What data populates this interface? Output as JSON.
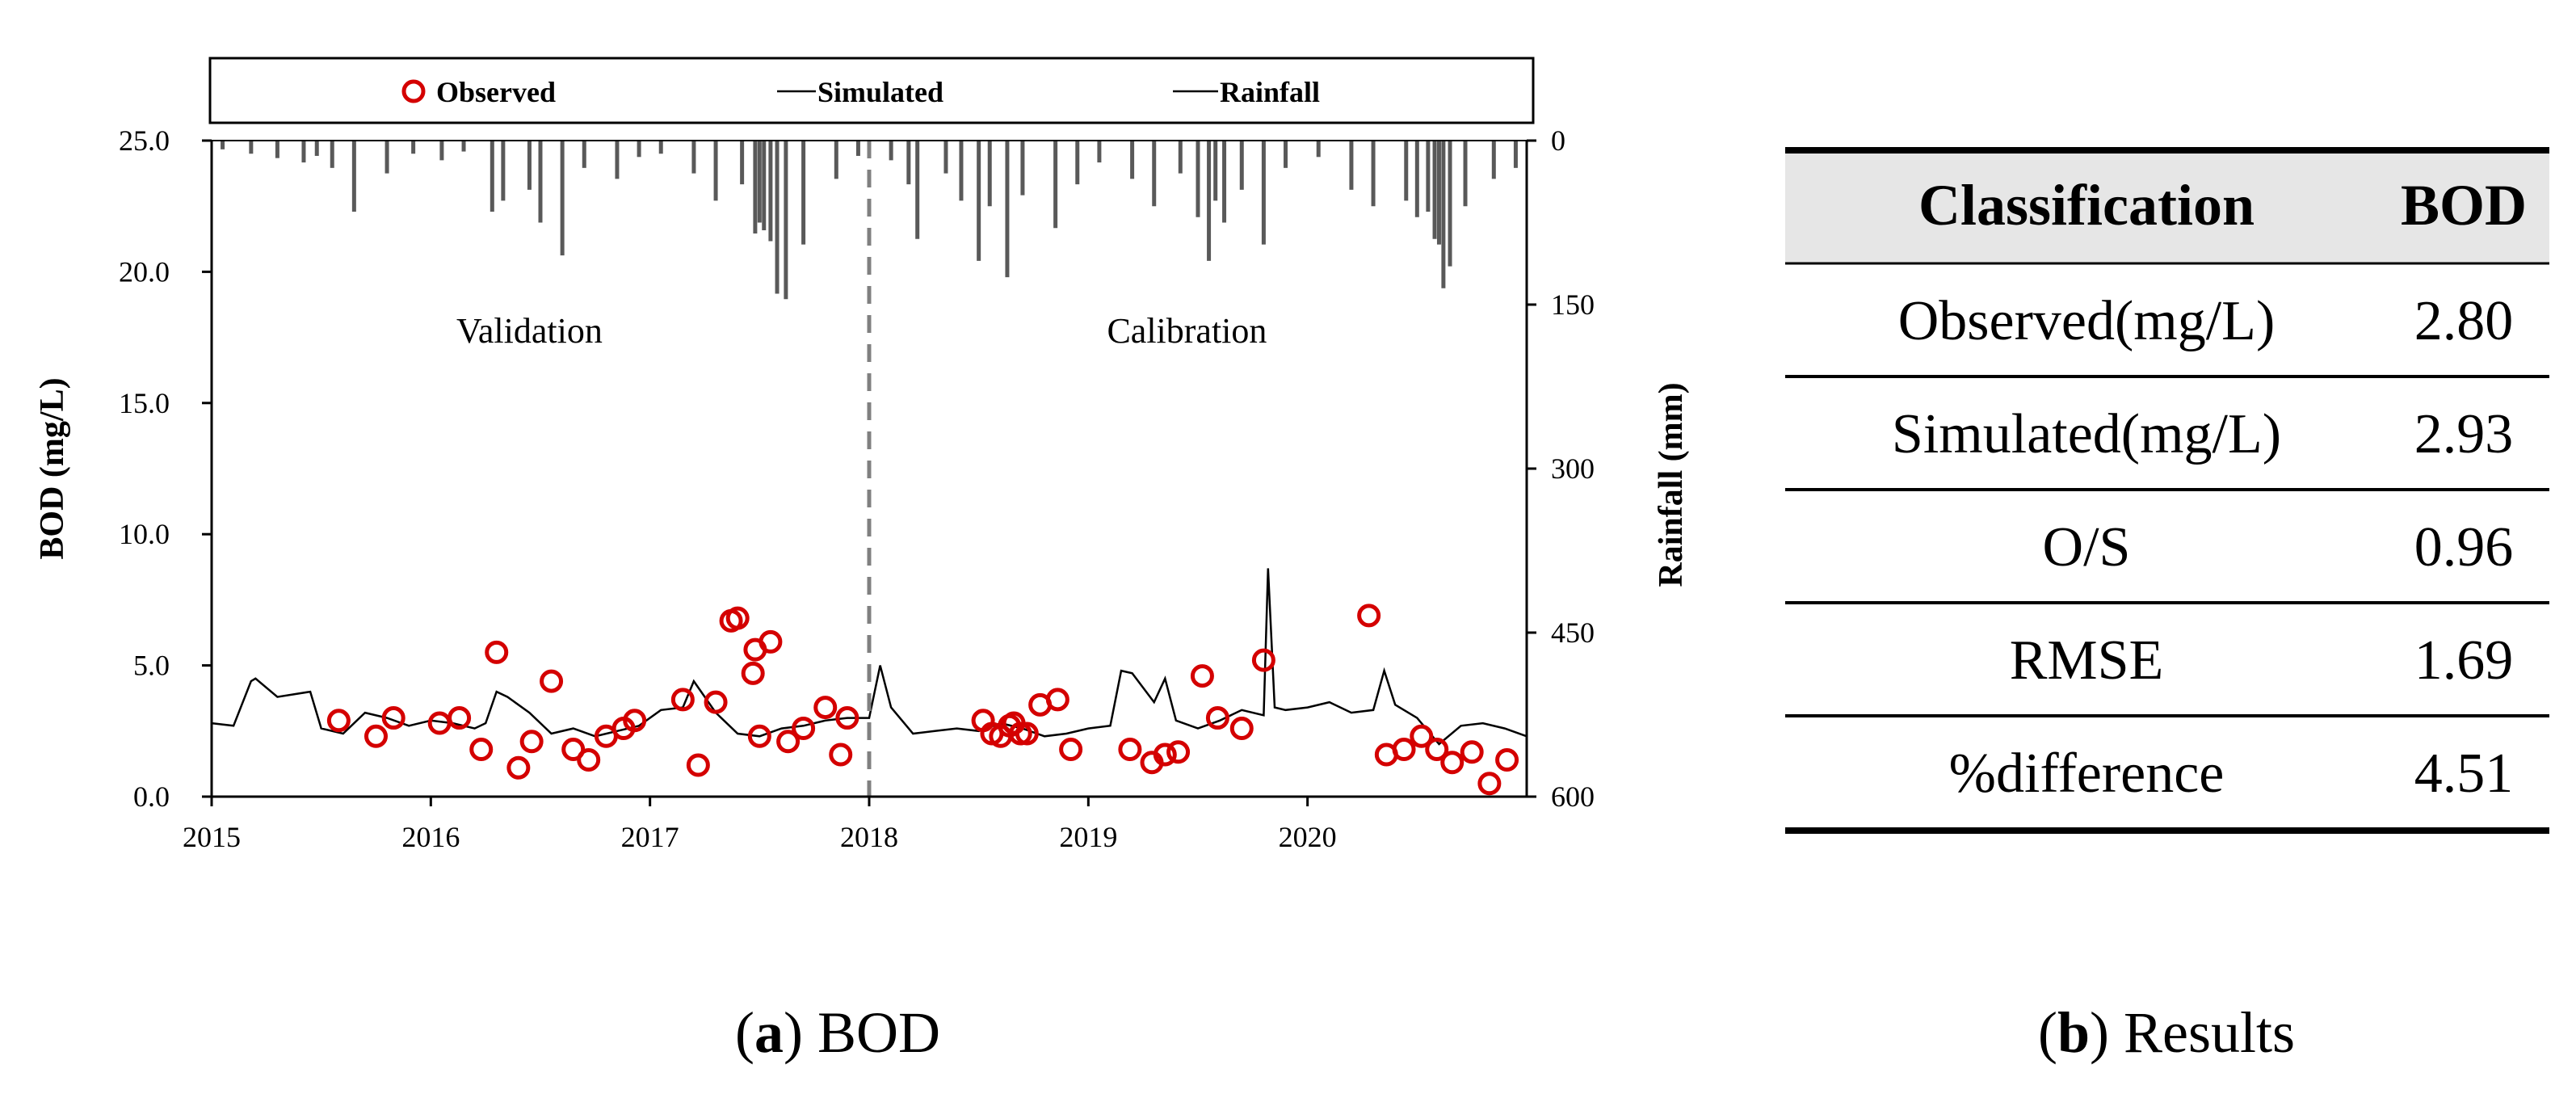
{
  "panel_a": {
    "caption_letter": "a",
    "caption_text": "BOD"
  },
  "panel_b": {
    "caption_letter": "b",
    "caption_text": "Results",
    "headers": [
      "Classification",
      "BOD"
    ],
    "rows": [
      [
        "Observed(mg/L)",
        "2.80"
      ],
      [
        "Simulated(mg/L)",
        "2.93"
      ],
      [
        "O/S",
        "0.96"
      ],
      [
        "RMSE",
        "1.69"
      ],
      [
        "%difference",
        "4.51"
      ]
    ]
  },
  "colors": {
    "observed": "#d40000",
    "simulated": "#000000",
    "rainfall": "#595959",
    "divider": "#808080",
    "table_header_bg": "#e6e6e6"
  },
  "chart_data": [
    {
      "type": "line",
      "legend": [
        "Observed",
        "Simulated",
        "Rainfall"
      ],
      "legend_position": "top",
      "xlabel": "",
      "ylabel": "BOD (mg/L)",
      "y2label": "Rainfall (mm)",
      "x_ticks": [
        "2015",
        "2016",
        "2017",
        "2018",
        "2019",
        "2020"
      ],
      "y_ticks": [
        "0.0",
        "5.0",
        "10.0",
        "15.0",
        "20.0",
        "25.0"
      ],
      "y2_ticks": [
        "0",
        "150",
        "300",
        "450",
        "600"
      ],
      "xlim": [
        2015.0,
        2021.0
      ],
      "ylim": [
        0,
        25
      ],
      "y2lim": [
        0,
        600
      ],
      "y2_inverted": true,
      "grid": false,
      "annotations": [
        {
          "text": "Validation",
          "x": 2016.45,
          "y": 17.3
        },
        {
          "text": "Calibration",
          "x": 2019.45,
          "y": 17.3
        }
      ],
      "divider_x": 2018.0,
      "series": [
        {
          "name": "Observed",
          "type": "scatter",
          "x": [
            2015.58,
            2015.75,
            2015.83,
            2016.04,
            2016.13,
            2016.23,
            2016.3,
            2016.4,
            2016.46,
            2016.55,
            2016.65,
            2016.72,
            2016.8,
            2016.88,
            2016.93,
            2017.15,
            2017.22,
            2017.3,
            2017.37,
            2017.4,
            2017.47,
            2017.48,
            2017.5,
            2017.55,
            2017.63,
            2017.7,
            2017.8,
            2017.87,
            2017.9,
            2018.52,
            2018.56,
            2018.6,
            2018.64,
            2018.66,
            2018.69,
            2018.72,
            2018.78,
            2018.86,
            2018.92,
            2019.19,
            2019.29,
            2019.35,
            2019.41,
            2019.52,
            2019.59,
            2019.7,
            2019.8,
            2020.28,
            2020.36,
            2020.44,
            2020.52,
            2020.59,
            2020.66,
            2020.75,
            2020.83,
            2020.91
          ],
          "values": [
            2.9,
            2.3,
            3.0,
            2.8,
            3.0,
            1.8,
            5.5,
            1.1,
            2.1,
            4.4,
            1.8,
            1.4,
            2.3,
            2.6,
            2.9,
            3.7,
            1.2,
            3.6,
            6.7,
            6.8,
            4.7,
            5.6,
            2.3,
            5.9,
            2.1,
            2.6,
            3.4,
            1.6,
            3.0,
            2.9,
            2.4,
            2.3,
            2.7,
            2.8,
            2.4,
            2.4,
            3.5,
            3.7,
            1.8,
            1.8,
            1.3,
            1.6,
            1.7,
            4.6,
            3.0,
            2.6,
            5.2,
            6.9,
            1.6,
            1.8,
            2.3,
            1.8,
            1.3,
            1.7,
            0.5,
            1.4
          ]
        },
        {
          "name": "Simulated",
          "type": "line",
          "x": [
            2015.0,
            2015.1,
            2015.18,
            2015.2,
            2015.3,
            2015.45,
            2015.5,
            2015.6,
            2015.7,
            2015.8,
            2015.9,
            2016.0,
            2016.1,
            2016.2,
            2016.25,
            2016.3,
            2016.35,
            2016.45,
            2016.55,
            2016.65,
            2016.75,
            2016.85,
            2016.95,
            2017.05,
            2017.15,
            2017.2,
            2017.3,
            2017.4,
            2017.5,
            2017.6,
            2017.7,
            2017.8,
            2017.9,
            2018.0,
            2018.05,
            2018.1,
            2018.2,
            2018.3,
            2018.4,
            2018.5,
            2018.6,
            2018.7,
            2018.8,
            2018.9,
            2019.0,
            2019.1,
            2019.15,
            2019.2,
            2019.3,
            2019.35,
            2019.4,
            2019.5,
            2019.6,
            2019.7,
            2019.8,
            2019.82,
            2019.85,
            2019.9,
            2020.0,
            2020.1,
            2020.2,
            2020.3,
            2020.35,
            2020.4,
            2020.5,
            2020.6,
            2020.7,
            2020.8,
            2020.9,
            2021.0
          ],
          "values": [
            2.8,
            2.7,
            4.4,
            4.5,
            3.8,
            4.0,
            2.6,
            2.4,
            3.2,
            3.0,
            2.7,
            2.9,
            2.8,
            2.6,
            2.8,
            4.0,
            3.8,
            3.2,
            2.4,
            2.6,
            2.3,
            2.5,
            2.7,
            3.3,
            3.4,
            4.4,
            3.2,
            2.4,
            2.3,
            2.6,
            2.7,
            2.9,
            3.0,
            3.0,
            5.0,
            3.4,
            2.4,
            2.5,
            2.6,
            2.5,
            2.8,
            2.6,
            2.3,
            2.4,
            2.6,
            2.7,
            4.8,
            4.7,
            3.6,
            4.5,
            2.9,
            2.6,
            2.9,
            3.3,
            3.1,
            8.7,
            3.4,
            3.3,
            3.4,
            3.6,
            3.2,
            3.3,
            4.8,
            3.5,
            3.0,
            2.0,
            2.7,
            2.8,
            2.6,
            2.3
          ]
        },
        {
          "name": "Rainfall",
          "type": "bar",
          "axis": "y2",
          "x": [
            2015.05,
            2015.18,
            2015.3,
            2015.42,
            2015.48,
            2015.55,
            2015.65,
            2015.8,
            2015.92,
            2016.05,
            2016.15,
            2016.28,
            2016.33,
            2016.45,
            2016.5,
            2016.6,
            2016.7,
            2016.85,
            2016.95,
            2017.05,
            2017.2,
            2017.3,
            2017.42,
            2017.48,
            2017.5,
            2017.52,
            2017.55,
            2017.58,
            2017.62,
            2017.7,
            2017.85,
            2017.95,
            2018.1,
            2018.18,
            2018.22,
            2018.35,
            2018.42,
            2018.5,
            2018.55,
            2018.63,
            2018.7,
            2018.85,
            2018.95,
            2019.05,
            2019.2,
            2019.3,
            2019.42,
            2019.5,
            2019.55,
            2019.58,
            2019.62,
            2019.7,
            2019.8,
            2019.9,
            2020.05,
            2020.2,
            2020.3,
            2020.45,
            2020.5,
            2020.55,
            2020.58,
            2020.6,
            2020.62,
            2020.65,
            2020.72,
            2020.85,
            2020.95
          ],
          "values": [
            8,
            12,
            16,
            20,
            14,
            25,
            65,
            30,
            12,
            18,
            10,
            65,
            55,
            45,
            75,
            105,
            25,
            35,
            15,
            12,
            30,
            55,
            40,
            85,
            75,
            82,
            92,
            140,
            145,
            95,
            35,
            14,
            18,
            40,
            90,
            30,
            55,
            110,
            60,
            125,
            50,
            80,
            40,
            20,
            35,
            60,
            30,
            70,
            110,
            55,
            75,
            45,
            95,
            25,
            15,
            45,
            60,
            55,
            70,
            65,
            90,
            95,
            135,
            115,
            60,
            35,
            25
          ]
        }
      ]
    },
    {
      "type": "table",
      "headers": [
        "Classification",
        "BOD"
      ],
      "rows": [
        [
          "Observed(mg/L)",
          "2.80"
        ],
        [
          "Simulated(mg/L)",
          "2.93"
        ],
        [
          "O/S",
          "0.96"
        ],
        [
          "RMSE",
          "1.69"
        ],
        [
          "%difference",
          "4.51"
        ]
      ]
    }
  ]
}
